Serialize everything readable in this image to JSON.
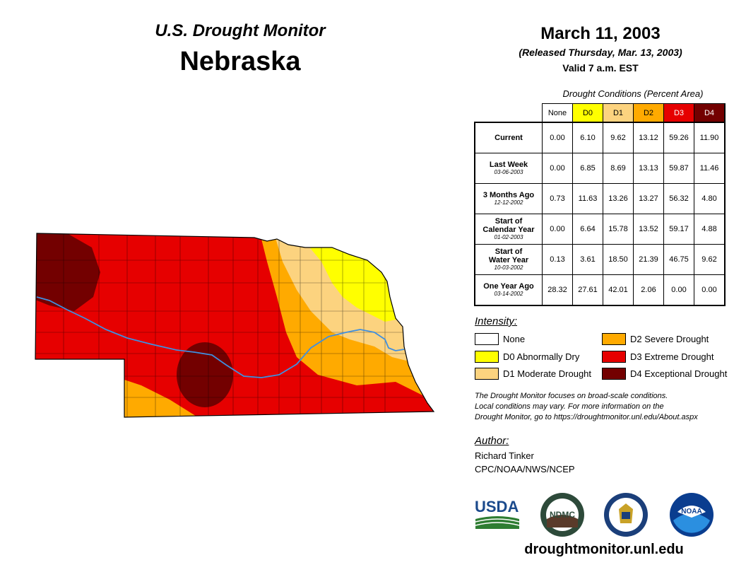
{
  "header": {
    "subtitle": "U.S. Drought Monitor",
    "state": "Nebraska"
  },
  "info": {
    "date": "March 11, 2003",
    "released": "(Released Thursday, Mar. 13, 2003)",
    "valid": "Valid 7 a.m. EST"
  },
  "table": {
    "caption": "Drought Conditions (Percent Area)",
    "columns": [
      "None",
      "D0",
      "D1",
      "D2",
      "D3",
      "D4"
    ],
    "rows": [
      {
        "label": "Current",
        "label2": "",
        "date": "",
        "values": [
          "0.00",
          "6.10",
          "9.62",
          "13.12",
          "59.26",
          "11.90"
        ]
      },
      {
        "label": "Last Week",
        "label2": "",
        "date": "03-06-2003",
        "values": [
          "0.00",
          "6.85",
          "8.69",
          "13.13",
          "59.87",
          "11.46"
        ]
      },
      {
        "label": "3 Months Ago",
        "label2": "",
        "date": "12-12-2002",
        "values": [
          "0.73",
          "11.63",
          "13.26",
          "13.27",
          "56.32",
          "4.80"
        ]
      },
      {
        "label": "Start of",
        "label2": "Calendar Year",
        "date": "01-02-2003",
        "values": [
          "0.00",
          "6.64",
          "15.78",
          "13.52",
          "59.17",
          "4.88"
        ]
      },
      {
        "label": "Start of",
        "label2": "Water Year",
        "date": "10-03-2002",
        "values": [
          "0.13",
          "3.61",
          "18.50",
          "21.39",
          "46.75",
          "9.62"
        ]
      },
      {
        "label": "One Year Ago",
        "label2": "",
        "date": "03-14-2002",
        "values": [
          "28.32",
          "27.61",
          "42.01",
          "2.06",
          "0.00",
          "0.00"
        ]
      }
    ]
  },
  "legend": {
    "title": "Intensity:",
    "items": [
      {
        "label": "None",
        "color": "#ffffff"
      },
      {
        "label": "D0 Abnormally Dry",
        "color": "#ffff00"
      },
      {
        "label": "D1 Moderate Drought",
        "color": "#fcd37f"
      },
      {
        "label": "D2 Severe Drought",
        "color": "#ffaa00"
      },
      {
        "label": "D3 Extreme Drought",
        "color": "#e60000"
      },
      {
        "label": "D4 Exceptional Drought",
        "color": "#730000"
      }
    ]
  },
  "note": {
    "line1": "The Drought Monitor focuses on broad-scale conditions.",
    "line2": "Local conditions may vary. For more information on the",
    "line3": "Drought Monitor, go to https://droughtmonitor.unl.edu/About.aspx"
  },
  "author": {
    "title": "Author:",
    "name": "Richard Tinker",
    "org": "CPC/NOAA/NWS/NCEP"
  },
  "logos": {
    "usda": "USDA",
    "ndmc": "NDMC",
    "noaa": "NOAA"
  },
  "website": "droughtmonitor.unl.edu",
  "colors": {
    "river": "#3f8fe0",
    "county_line": "#000000"
  }
}
